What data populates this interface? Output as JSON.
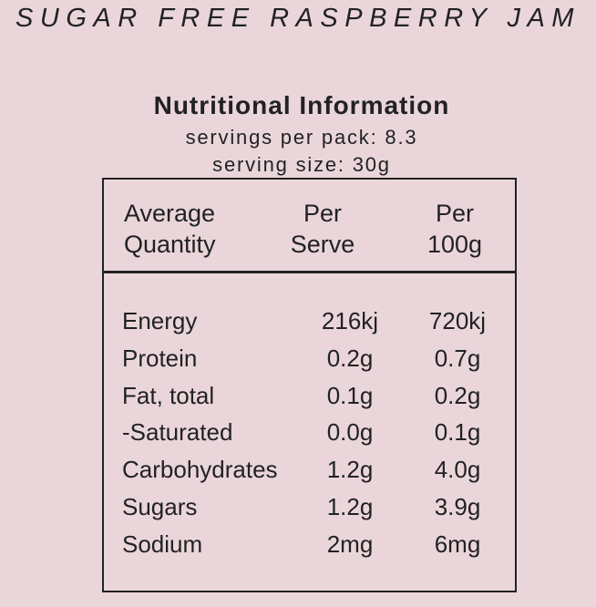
{
  "product": {
    "title": "SUGAR FREE RASPBERRY JAM"
  },
  "panel": {
    "heading": "Nutritional Information",
    "servings_per_pack": "servings per pack: 8.3",
    "serving_size": "serving size: 30g"
  },
  "table": {
    "headers": {
      "quantity": [
        "Average",
        "Quantity"
      ],
      "per_serve": [
        "Per",
        "Serve"
      ],
      "per_100g": [
        "Per",
        "100g"
      ]
    },
    "rows": [
      {
        "name": "Energy",
        "per_serve": "216kj",
        "per_100g": "720kj"
      },
      {
        "name": "Protein",
        "per_serve": "0.2g",
        "per_100g": "0.7g"
      },
      {
        "name": "Fat, total",
        "per_serve": "0.1g",
        "per_100g": "0.2g"
      },
      {
        "name": "-Saturated",
        "per_serve": "0.0g",
        "per_100g": "0.1g"
      },
      {
        "name": "Carbohydrates",
        "per_serve": "1.2g",
        "per_100g": "4.0g"
      },
      {
        "name": "Sugars",
        "per_serve": "1.2g",
        "per_100g": "3.9g"
      },
      {
        "name": "Sodium",
        "per_serve": "2mg",
        "per_100g": "6mg"
      }
    ]
  }
}
